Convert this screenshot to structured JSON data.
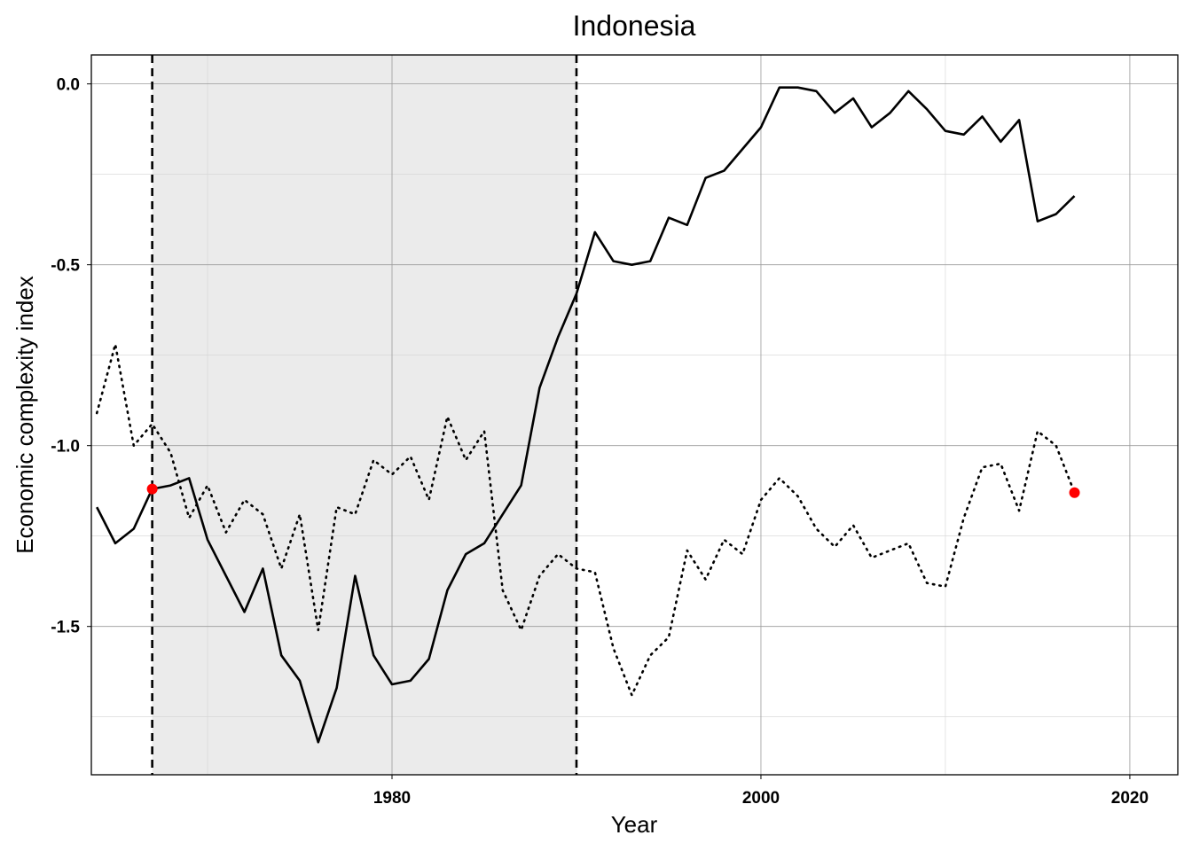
{
  "chart_data": {
    "type": "line",
    "title": "Indonesia",
    "xlabel": "Year",
    "ylabel": "Economic complexity index",
    "xlim": [
      1963.7,
      2022.6
    ],
    "ylim": [
      -1.91,
      0.08
    ],
    "x_ticks": [
      1980,
      2000,
      2020
    ],
    "x_tick_labels": [
      "1980",
      "2000",
      "2020"
    ],
    "x_minor_ticks": [
      1970,
      1990,
      2010
    ],
    "y_ticks": [
      0.0,
      -0.5,
      -1.0,
      -1.5
    ],
    "y_tick_labels": [
      "0.0",
      "-0.5",
      "-1.0",
      "-1.5"
    ],
    "y_minor_ticks": [
      -0.25,
      -0.75,
      -1.25,
      -1.75
    ],
    "grid": true,
    "legend": "none",
    "shaded_period": {
      "start": 1967,
      "end": 1990,
      "color": "#ebebeb"
    },
    "vertical_lines": [
      1967,
      1990
    ],
    "series": [
      {
        "style": "solid",
        "color": "#000000",
        "x": [
          1964,
          1965,
          1966,
          1967,
          1968,
          1969,
          1970,
          1971,
          1972,
          1973,
          1974,
          1975,
          1976,
          1977,
          1978,
          1979,
          1980,
          1981,
          1982,
          1983,
          1984,
          1985,
          1986,
          1987,
          1988,
          1989,
          1990,
          1991,
          1992,
          1993,
          1994,
          1995,
          1996,
          1997,
          1998,
          1999,
          2000,
          2001,
          2002,
          2003,
          2004,
          2005,
          2006,
          2007,
          2008,
          2009,
          2010,
          2011,
          2012,
          2013,
          2014,
          2015,
          2016,
          2017
        ],
        "values": [
          -1.17,
          -1.27,
          -1.23,
          -1.12,
          -1.11,
          -1.09,
          -1.26,
          -1.36,
          -1.46,
          -1.34,
          -1.58,
          -1.65,
          -1.82,
          -1.67,
          -1.36,
          -1.58,
          -1.66,
          -1.65,
          -1.59,
          -1.4,
          -1.3,
          -1.27,
          -1.19,
          -1.11,
          -0.84,
          -0.7,
          -0.58,
          -0.41,
          -0.49,
          -0.5,
          -0.49,
          -0.37,
          -0.39,
          -0.26,
          -0.24,
          -0.18,
          -0.12,
          -0.01,
          -0.01,
          -0.02,
          -0.08,
          -0.04,
          -0.12,
          -0.08,
          -0.02,
          -0.07,
          -0.13,
          -0.14,
          -0.09,
          -0.16,
          -0.1,
          -0.38,
          -0.36,
          -0.31
        ]
      },
      {
        "style": "dotted",
        "color": "#000000",
        "x": [
          1964,
          1965,
          1966,
          1967,
          1968,
          1969,
          1970,
          1971,
          1972,
          1973,
          1974,
          1975,
          1976,
          1977,
          1978,
          1979,
          1980,
          1981,
          1982,
          1983,
          1984,
          1985,
          1986,
          1987,
          1988,
          1989,
          1990,
          1991,
          1992,
          1993,
          1994,
          1995,
          1996,
          1997,
          1998,
          1999,
          2000,
          2001,
          2002,
          2003,
          2004,
          2005,
          2006,
          2007,
          2008,
          2009,
          2010,
          2011,
          2012,
          2013,
          2014,
          2015,
          2016,
          2017
        ],
        "values": [
          -0.91,
          -0.72,
          -1.0,
          -0.94,
          -1.02,
          -1.2,
          -1.11,
          -1.24,
          -1.15,
          -1.19,
          -1.34,
          -1.19,
          -1.51,
          -1.17,
          -1.19,
          -1.04,
          -1.08,
          -1.03,
          -1.15,
          -0.92,
          -1.04,
          -0.96,
          -1.4,
          -1.51,
          -1.36,
          -1.3,
          -1.34,
          -1.35,
          -1.56,
          -1.69,
          -1.58,
          -1.53,
          -1.29,
          -1.37,
          -1.26,
          -1.3,
          -1.15,
          -1.09,
          -1.14,
          -1.23,
          -1.28,
          -1.22,
          -1.31,
          -1.29,
          -1.27,
          -1.38,
          -1.39,
          -1.2,
          -1.06,
          -1.05,
          -1.18,
          -0.96,
          -1.0,
          -1.13
        ]
      }
    ],
    "highlight_points": [
      {
        "x": 1967,
        "y": -1.12,
        "color": "#ff0000"
      },
      {
        "x": 2017,
        "y": -1.13,
        "color": "#ff0000"
      }
    ]
  }
}
